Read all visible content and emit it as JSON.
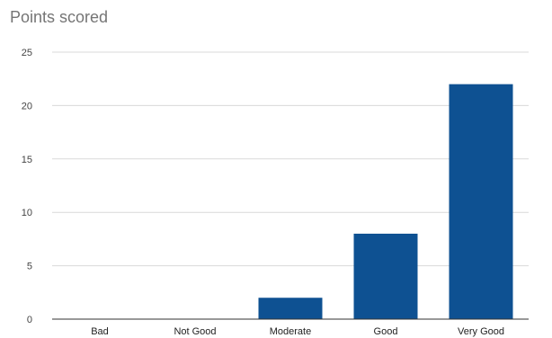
{
  "chart_data": {
    "type": "bar",
    "title": "Points scored",
    "categories": [
      "Bad",
      "Not Good",
      "Moderate",
      "Good",
      "Very Good"
    ],
    "values": [
      0,
      0,
      2,
      8,
      22
    ],
    "ylim": [
      0,
      25
    ],
    "yticks": [
      0,
      5,
      10,
      15,
      20,
      25
    ],
    "grid": true,
    "bar_color": "#0e5192",
    "grid_color": "#d9d9d9",
    "axis_color": "#333333"
  }
}
